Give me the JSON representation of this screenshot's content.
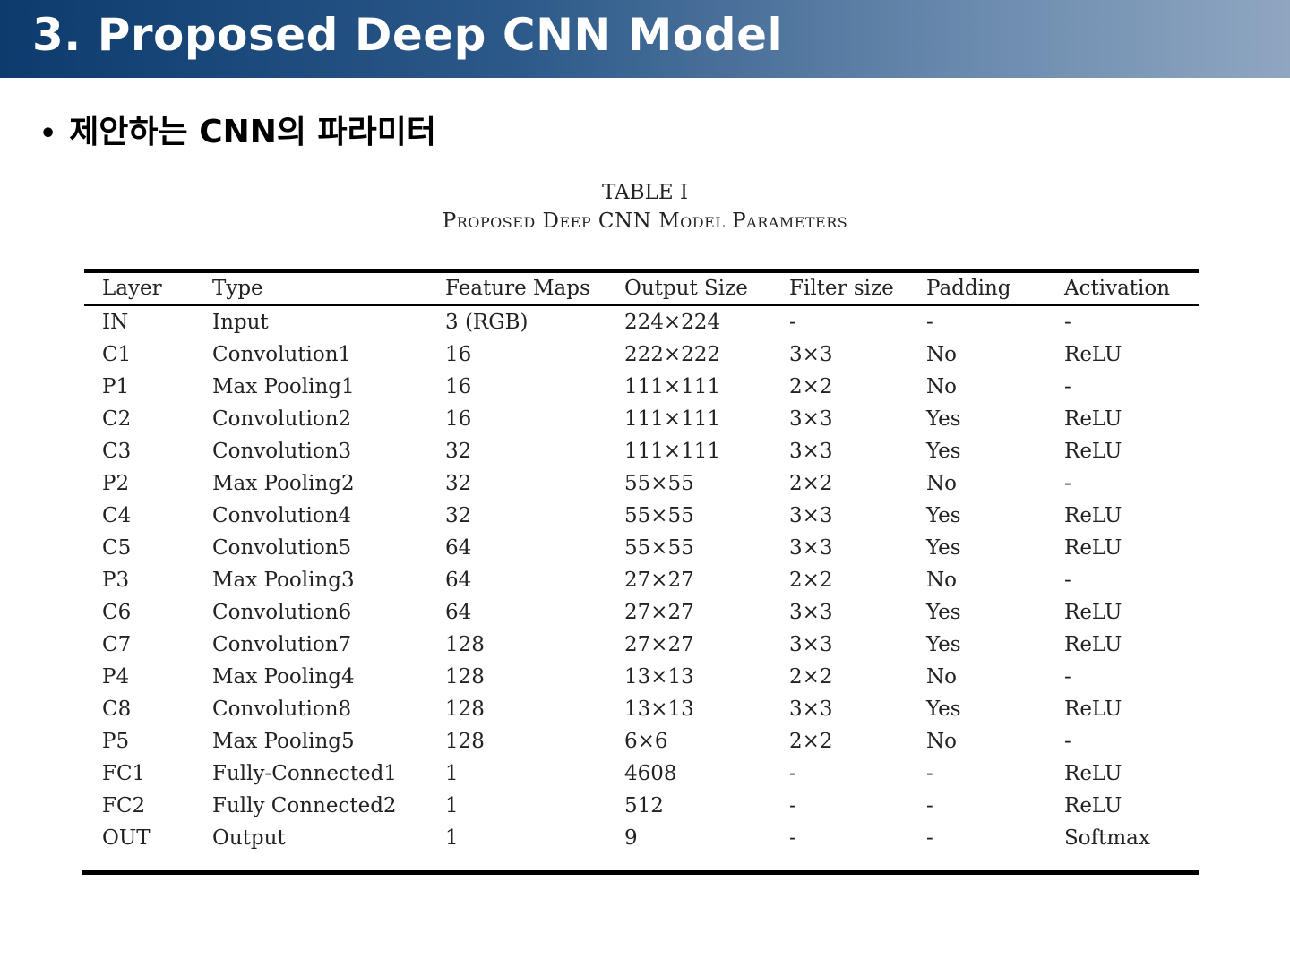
{
  "slide": {
    "title": "3. Proposed Deep CNN Model",
    "bullet": "제안하는 CNN의 파라미터"
  },
  "table": {
    "caption_line1": "TABLE I",
    "caption_line2": "Proposed Deep CNN Model Parameters",
    "headers": [
      "Layer",
      "Type",
      "Feature Maps",
      "Output Size",
      "Filter size",
      "Padding",
      "Activation"
    ],
    "rows": [
      [
        "IN",
        "Input",
        "3 (RGB)",
        "224×224",
        "-",
        "-",
        "-"
      ],
      [
        "C1",
        "Convolution1",
        "16",
        "222×222",
        "3×3",
        "No",
        "ReLU"
      ],
      [
        "P1",
        "Max Pooling1",
        "16",
        "111×111",
        "2×2",
        "No",
        "-"
      ],
      [
        "C2",
        "Convolution2",
        "16",
        "111×111",
        "3×3",
        "Yes",
        "ReLU"
      ],
      [
        "C3",
        "Convolution3",
        "32",
        "111×111",
        "3×3",
        "Yes",
        "ReLU"
      ],
      [
        "P2",
        "Max Pooling2",
        "32",
        "55×55",
        "2×2",
        "No",
        "-"
      ],
      [
        "C4",
        "Convolution4",
        "32",
        "55×55",
        "3×3",
        "Yes",
        "ReLU"
      ],
      [
        "C5",
        "Convolution5",
        "64",
        "55×55",
        "3×3",
        "Yes",
        "ReLU"
      ],
      [
        "P3",
        "Max Pooling3",
        "64",
        "27×27",
        "2×2",
        "No",
        "-"
      ],
      [
        "C6",
        "Convolution6",
        "64",
        "27×27",
        "3×3",
        "Yes",
        "ReLU"
      ],
      [
        "C7",
        "Convolution7",
        "128",
        "27×27",
        "3×3",
        "Yes",
        "ReLU"
      ],
      [
        "P4",
        "Max Pooling4",
        "128",
        "13×13",
        "2×2",
        "No",
        "-"
      ],
      [
        "C8",
        "Convolution8",
        "128",
        "13×13",
        "3×3",
        "Yes",
        "ReLU"
      ],
      [
        "P5",
        "Max Pooling5",
        "128",
        "6×6",
        "2×2",
        "No",
        "-"
      ],
      [
        "FC1",
        "Fully-Connected1",
        "1",
        "4608",
        "-",
        "-",
        "ReLU"
      ],
      [
        "FC2",
        "Fully Connected2",
        "1",
        "512",
        "-",
        "-",
        "ReLU"
      ],
      [
        "OUT",
        "Output",
        "1",
        "9",
        "-",
        "-",
        "Softmax"
      ]
    ]
  }
}
